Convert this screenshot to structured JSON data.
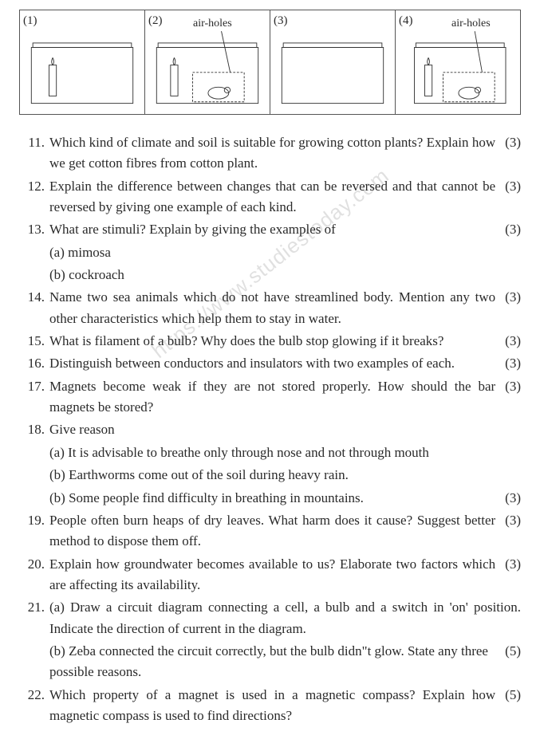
{
  "figure": {
    "cells": [
      {
        "num": "(1)",
        "air_label": ""
      },
      {
        "num": "(2)",
        "air_label": "air-holes"
      },
      {
        "num": "(3)",
        "air_label": ""
      },
      {
        "num": "(4)",
        "air_label": "air-holes"
      }
    ]
  },
  "watermark": "https://www.studiestoday.com",
  "questions": [
    {
      "num": "11.",
      "text": "Which kind of climate and soil is suitable for growing cotton plants? Explain how we get cotton fibres from cotton plant.",
      "marks": "(3)"
    },
    {
      "num": "12.",
      "text": "Explain the difference between changes that can be reversed and that cannot be reversed by giving one example of each kind.",
      "marks": "(3)"
    },
    {
      "num": "13.",
      "text": "What are stimuli? Explain by giving the examples of",
      "marks": "(3)",
      "subs": [
        "(a) mimosa",
        "(b) cockroach"
      ]
    },
    {
      "num": "14.",
      "text": "Name two sea animals which do not have streamlined body. Mention any two other characteristics which help them to stay in water.",
      "marks": "(3)"
    },
    {
      "num": "15.",
      "text": "What is filament of a bulb? Why does the bulb stop glowing if it breaks?",
      "marks": "(3)"
    },
    {
      "num": "16.",
      "text": "Distinguish between conductors and insulators with two examples of each.",
      "marks": "(3)"
    },
    {
      "num": "17.",
      "text": "Magnets become weak if they are not stored properly. How should the bar magnets be stored?",
      "marks": "(3)"
    },
    {
      "num": "18.",
      "text": "Give reason",
      "marks": "",
      "subs": [
        "(a) It is advisable to breathe only through nose and not through mouth",
        "(b) Earthworms come out of the soil during heavy rain."
      ],
      "sub_last": {
        "text": "(b) Some people find difficulty in breathing in mountains.",
        "marks": "(3)"
      }
    },
    {
      "num": "19.",
      "text": "People often burn heaps of dry leaves. What harm does it cause? Suggest better method to dispose them off.",
      "marks": "(3)"
    },
    {
      "num": "20.",
      "text": "Explain how groundwater becomes available to us? Elaborate two factors which are affecting its availability.",
      "marks": "(3)"
    },
    {
      "num": "21.",
      "text": "(a)  Draw a circuit diagram connecting a cell, a bulb and a switch in 'on' position. Indicate the direction of current in the diagram.",
      "marks": "",
      "sub_last": {
        "text": "(b) Zeba connected the circuit correctly, but the bulb didn\"t glow. State any three possible reasons.",
        "marks": "(5)"
      }
    },
    {
      "num": "22.",
      "text": "Which property of a magnet is used in a magnetic compass? Explain how magnetic compass is used to find directions?",
      "marks": "(5)"
    }
  ]
}
